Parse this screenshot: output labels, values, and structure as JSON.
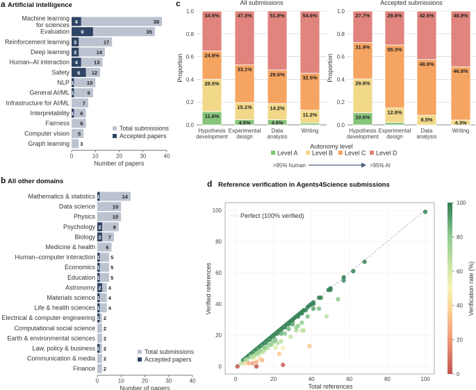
{
  "colors": {
    "total": "#bcc3d0",
    "accepted": "#2f4565",
    "levelA": "#86c47a",
    "levelB": "#f2d98a",
    "levelC": "#f5a462",
    "levelD": "#e0847d"
  },
  "chart_data": [
    {
      "panel": "a",
      "type": "bar",
      "orientation": "horizontal",
      "title": "Artificial intelligence",
      "categories": [
        [
          "Machine learning",
          "for sciences"
        ],
        [
          "Evaluation"
        ],
        [
          "Reinforcement learning"
        ],
        [
          "Deep learning"
        ],
        [
          "Human–AI interaction"
        ],
        [
          "Safety"
        ],
        [
          "NLP"
        ],
        [
          "General AI/ML"
        ],
        [
          "Infrastructure for AI/ML"
        ],
        [
          "Interpretability"
        ],
        [
          "Fairness"
        ],
        [
          "Computer vision"
        ],
        [
          "Graph learning"
        ]
      ],
      "series": [
        {
          "name": "Total submissions",
          "values": [
            38,
            35,
            17,
            14,
            13,
            12,
            10,
            9,
            7,
            6,
            6,
            5,
            3
          ]
        },
        {
          "name": "Accepted papers",
          "values": [
            4,
            9,
            3,
            3,
            4,
            6,
            1,
            1,
            0,
            1,
            0,
            0,
            0
          ]
        }
      ],
      "xlabel": "Number of papers",
      "xlim": [
        0,
        40
      ],
      "xticks": [
        "0",
        "10",
        "20",
        "30",
        "40"
      ],
      "legend": "bottom-right"
    },
    {
      "panel": "b",
      "type": "bar",
      "orientation": "horizontal",
      "title": "All other domains",
      "categories": [
        [
          "Mathematics & statistics"
        ],
        [
          "Data science"
        ],
        [
          "Physics"
        ],
        [
          "Psychology"
        ],
        [
          "Biology"
        ],
        [
          "Medicine & health"
        ],
        [
          "Human–computer interaction"
        ],
        [
          "Economics"
        ],
        [
          "Education"
        ],
        [
          "Astronomy"
        ],
        [
          "Materials science"
        ],
        [
          "Life & health sciences"
        ],
        [
          "Electrical & computer engineering"
        ],
        [
          "Computational social science"
        ],
        [
          "Earth & environmental sciences"
        ],
        [
          "Law, policy & business"
        ],
        [
          "Communication & media"
        ],
        [
          "Finance"
        ]
      ],
      "series": [
        {
          "name": "Total submissions",
          "values": [
            14,
            10,
            10,
            9,
            7,
            6,
            5,
            5,
            5,
            4,
            4,
            4,
            2,
            2,
            2,
            2,
            2,
            2
          ]
        },
        {
          "name": "Accepted papers",
          "values": [
            1,
            0,
            0,
            2,
            2,
            0,
            1,
            1,
            1,
            2,
            1,
            1,
            1,
            0,
            0,
            1,
            0,
            0
          ]
        }
      ],
      "xlabel": "Number of papers",
      "xlim": [
        0,
        40
      ],
      "xticks": [
        "0",
        "10",
        "20",
        "30",
        "40"
      ],
      "legend": "bottom-right"
    },
    {
      "panel": "c",
      "type": "bar",
      "stacked": true,
      "legend_title": "Autonomy level",
      "legend": [
        "Level A",
        "Level B",
        "Level C",
        "Level D"
      ],
      "scale_left": ">95% human",
      "scale_right": ">95% AI",
      "ylabel": "Proportion",
      "ylim": [
        0,
        1
      ],
      "yticks": [
        "0.0",
        "0.2",
        "0.4",
        "0.6",
        "0.8",
        "1.0"
      ],
      "categories": [
        [
          "Hypothesis",
          "development"
        ],
        [
          "Experimental",
          "design"
        ],
        [
          "Data",
          "analysis"
        ],
        [
          "Writing"
        ]
      ],
      "subplots": [
        {
          "title": "All submissions",
          "values": [
            [
              11.6,
              28.5,
              24.9,
              34.9
            ],
            [
              4.5,
              15.1,
              33.1,
              47.3
            ],
            [
              4.5,
              14.2,
              29.6,
              51.8
            ],
            [
              1.7,
              11.2,
              32.5,
              54.6
            ]
          ],
          "labels": [
            [
              "11.6%",
              "28.5%",
              "24.9%",
              "34.9%"
            ],
            [
              "4.5%",
              "15.1%",
              "33.1%",
              "47.3%"
            ],
            [
              "4.5%",
              "14.2%",
              "29.6%",
              "51.8%"
            ],
            [
              "",
              "11.2%",
              "32.5%",
              "54.6%"
            ]
          ]
        },
        {
          "title": "Accepted submissions",
          "values": [
            [
              10.6,
              29.8,
              31.9,
              27.7
            ],
            [
              2.1,
              12.8,
              55.3,
              29.8
            ],
            [
              0,
              8.5,
              48.9,
              42.6
            ],
            [
              0,
              4.3,
              46.8,
              48.9
            ]
          ],
          "labels": [
            [
              "10.6%",
              "29.8%",
              "31.9%",
              "27.7%"
            ],
            [
              "",
              "12.8%",
              "55.3%",
              "29.8%"
            ],
            [
              "",
              "8.5%",
              "48.9%",
              "42.6%"
            ],
            [
              "",
              "4.3%",
              "46.8%",
              "48.9%"
            ]
          ]
        }
      ]
    },
    {
      "panel": "d",
      "type": "scatter",
      "title": "Reference verification in Agents4Science submissions",
      "xlabel": "Total references",
      "ylabel": "Verified references",
      "xlim": [
        0,
        100
      ],
      "ylim": [
        0,
        100
      ],
      "xticks": [
        "0",
        "20",
        "40",
        "60",
        "80",
        "100"
      ],
      "yticks": [
        "0",
        "20",
        "40",
        "60",
        "80",
        "100"
      ],
      "reference_line": "Perfect (100% verified)",
      "colorbar": {
        "label": "Verification rate (%)",
        "range": [
          0,
          100
        ],
        "ticks": [
          "0",
          "20",
          "40",
          "60",
          "80",
          "100"
        ]
      },
      "grid": true,
      "points": [
        [
          4,
          4
        ],
        [
          5,
          5
        ],
        [
          6,
          6
        ],
        [
          7,
          7
        ],
        [
          8,
          8
        ],
        [
          9,
          9
        ],
        [
          10,
          10
        ],
        [
          11,
          11
        ],
        [
          12,
          12
        ],
        [
          13,
          13
        ],
        [
          14,
          14
        ],
        [
          15,
          15
        ],
        [
          16,
          16
        ],
        [
          17,
          17
        ],
        [
          18,
          18
        ],
        [
          19,
          19
        ],
        [
          20,
          20
        ],
        [
          21,
          21
        ],
        [
          22,
          22
        ],
        [
          23,
          23
        ],
        [
          24,
          24
        ],
        [
          25,
          25
        ],
        [
          26,
          26
        ],
        [
          27,
          27
        ],
        [
          28,
          28
        ],
        [
          29,
          29
        ],
        [
          30,
          30
        ],
        [
          31,
          31
        ],
        [
          32,
          32
        ],
        [
          33,
          33
        ],
        [
          34,
          34
        ],
        [
          35,
          35
        ],
        [
          36,
          36
        ],
        [
          38,
          38
        ],
        [
          39,
          39
        ],
        [
          40,
          40
        ],
        [
          41,
          41
        ],
        [
          44,
          44
        ],
        [
          45,
          44
        ],
        [
          49,
          49
        ],
        [
          50,
          50
        ],
        [
          50,
          49
        ],
        [
          57,
          57
        ],
        [
          57,
          55
        ],
        [
          62,
          61
        ],
        [
          68,
          67
        ],
        [
          100,
          99
        ],
        [
          5,
          4
        ],
        [
          6,
          5
        ],
        [
          8,
          7
        ],
        [
          10,
          9
        ],
        [
          12,
          11
        ],
        [
          14,
          13
        ],
        [
          16,
          15
        ],
        [
          18,
          17
        ],
        [
          20,
          19
        ],
        [
          22,
          21
        ],
        [
          24,
          23
        ],
        [
          26,
          25
        ],
        [
          28,
          27
        ],
        [
          30,
          29
        ],
        [
          33,
          32
        ],
        [
          35,
          34
        ],
        [
          37,
          36
        ],
        [
          41,
          40
        ],
        [
          54,
          43
        ],
        [
          48,
          32
        ],
        [
          44,
          37
        ],
        [
          41,
          37
        ],
        [
          38,
          32
        ],
        [
          39,
          13
        ],
        [
          36,
          23
        ],
        [
          35,
          23
        ],
        [
          32,
          23
        ],
        [
          29,
          19
        ],
        [
          35,
          28
        ],
        [
          33,
          26
        ],
        [
          32,
          25
        ],
        [
          24,
          16
        ],
        [
          22,
          15
        ],
        [
          25,
          12
        ],
        [
          21,
          12
        ],
        [
          23,
          8
        ],
        [
          25,
          1
        ],
        [
          11,
          0
        ],
        [
          1,
          0
        ],
        [
          9,
          2
        ],
        [
          7,
          2
        ],
        [
          11,
          3
        ],
        [
          14,
          4
        ],
        [
          13,
          5
        ],
        [
          5,
          2
        ],
        [
          3,
          2
        ],
        [
          10,
          5
        ],
        [
          12,
          8
        ],
        [
          15,
          10
        ],
        [
          17,
          12
        ],
        [
          19,
          14
        ],
        [
          20,
          16
        ],
        [
          26,
          21
        ],
        [
          28,
          24
        ],
        [
          30,
          27
        ],
        [
          24,
          21
        ],
        [
          18,
          14
        ],
        [
          16,
          12
        ],
        [
          14,
          9
        ],
        [
          12,
          9
        ],
        [
          10,
          7
        ],
        [
          8,
          6
        ],
        [
          6,
          4
        ],
        [
          21,
          17
        ],
        [
          15,
          12
        ],
        [
          13,
          10
        ],
        [
          9,
          6
        ],
        [
          11,
          8
        ]
      ]
    }
  ]
}
